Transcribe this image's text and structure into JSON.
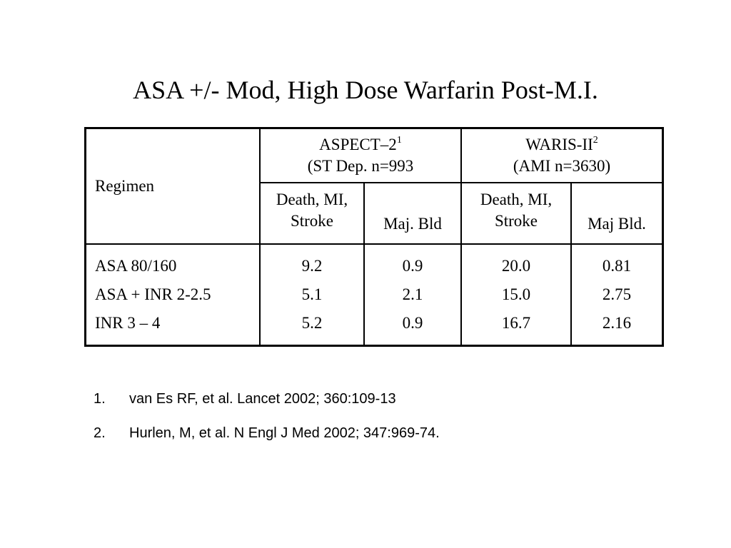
{
  "title": "ASA +/- Mod, High Dose Warfarin Post-M.I.",
  "table": {
    "regimen_header": "Regimen",
    "studies": [
      {
        "name": "ASPECT–2",
        "ref": "1",
        "sub": "(ST Dep. n=993"
      },
      {
        "name": "WARIS-II",
        "ref": "2",
        "sub": "(AMI n=3630)"
      }
    ],
    "columns": [
      {
        "line1": "Death, MI,",
        "line2": "Stroke"
      },
      {
        "line1": "",
        "line2": "Maj. Bld"
      },
      {
        "line1": "Death, MI,",
        "line2": "Stroke"
      },
      {
        "line1": "",
        "line2": "Maj Bld."
      }
    ],
    "rows": [
      {
        "regimen": "ASA 80/160",
        "values": [
          "9.2",
          "0.9",
          "20.0",
          "0.81"
        ]
      },
      {
        "regimen": "ASA + INR 2-2.5",
        "values": [
          "5.1",
          "2.1",
          "15.0",
          "2.75"
        ]
      },
      {
        "regimen": "INR 3 – 4",
        "values": [
          "5.2",
          "0.9",
          "16.7",
          "2.16"
        ]
      }
    ]
  },
  "references": [
    {
      "num": "1.",
      "text": "van Es RF, et al. Lancet 2002; 360:109-13"
    },
    {
      "num": "2.",
      "text": "Hurlen, M, et al. N Engl J Med 2002; 347:969-74."
    }
  ]
}
